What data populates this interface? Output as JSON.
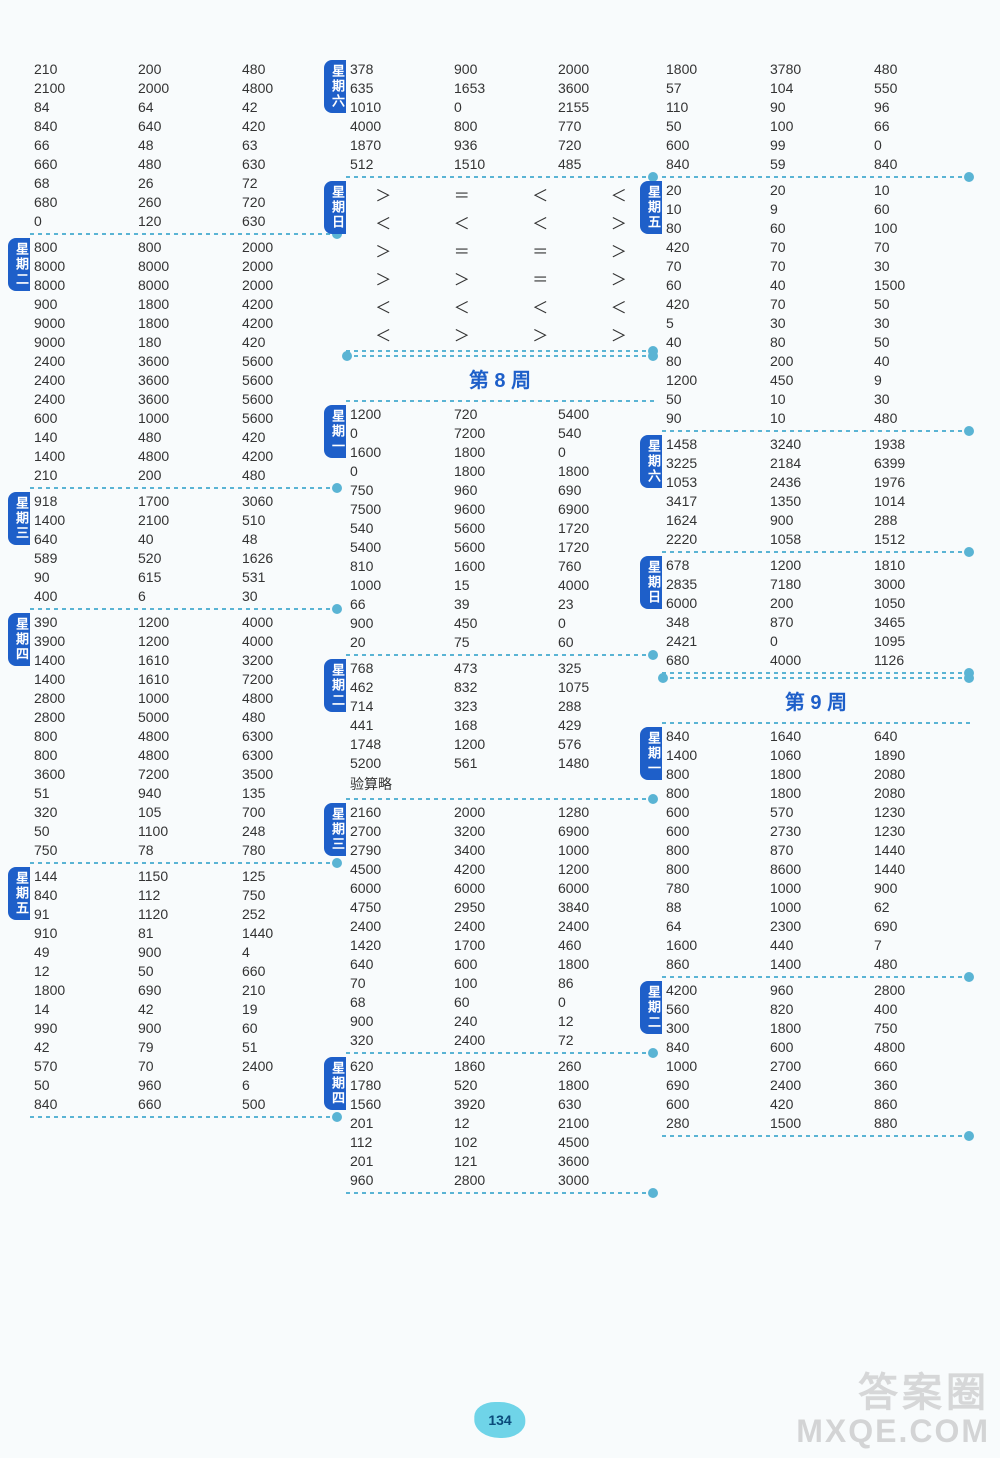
{
  "page_number": "134",
  "watermark_main": "答案圈",
  "watermark_sub": "MXQE.COM",
  "week8_title": "第 8 周",
  "week9_title": "第 9 周",
  "columns": [
    {
      "sections": [
        {
          "tab": null,
          "cells": [
            "210",
            "200",
            "480",
            "2100",
            "2000",
            "4800",
            "84",
            "64",
            "42",
            "840",
            "640",
            "420",
            "66",
            "48",
            "63",
            "660",
            "480",
            "630",
            "68",
            "26",
            "72",
            "680",
            "260",
            "720",
            "0",
            "120",
            "630"
          ]
        },
        {
          "tab": "星期二",
          "cells": [
            "800",
            "800",
            "2000",
            "8000",
            "8000",
            "2000",
            "8000",
            "8000",
            "2000",
            "900",
            "1800",
            "4200",
            "9000",
            "1800",
            "4200",
            "9000",
            "180",
            "420",
            "2400",
            "3600",
            "5600",
            "2400",
            "3600",
            "5600",
            "2400",
            "3600",
            "5600",
            "600",
            "1000",
            "5600",
            "140",
            "480",
            "420",
            "1400",
            "4800",
            "4200",
            "210",
            "200",
            "480"
          ]
        },
        {
          "tab": "星期三",
          "cells": [
            "918",
            "1700",
            "3060",
            "1400",
            "2100",
            "510",
            "640",
            "40",
            "48",
            "589",
            "520",
            "1626",
            "90",
            "615",
            "531",
            "400",
            "6",
            "30"
          ]
        },
        {
          "tab": "星期四",
          "cells": [
            "390",
            "1200",
            "4000",
            "3900",
            "1200",
            "4000",
            "1400",
            "1610",
            "3200",
            "1400",
            "1610",
            "7200",
            "2800",
            "1000",
            "4800",
            "2800",
            "5000",
            "480",
            "800",
            "4800",
            "6300",
            "800",
            "4800",
            "6300",
            "3600",
            "7200",
            "3500",
            "51",
            "940",
            "135",
            "320",
            "105",
            "700",
            "50",
            "1100",
            "248",
            "750",
            "78",
            "780"
          ]
        },
        {
          "tab": "星期五",
          "cells": [
            "144",
            "1150",
            "125",
            "840",
            "112",
            "750",
            "91",
            "1120",
            "252",
            "910",
            "81",
            "1440",
            "49",
            "900",
            "4",
            "12",
            "50",
            "660",
            "1800",
            "690",
            "210",
            "14",
            "42",
            "19",
            "990",
            "900",
            "60",
            "42",
            "79",
            "51",
            "570",
            "70",
            "2400",
            "50",
            "960",
            "6",
            "840",
            "660",
            "500"
          ]
        }
      ]
    },
    {
      "sections": [
        {
          "tab": "星期六",
          "cells": [
            "378",
            "900",
            "2000",
            "635",
            "1653",
            "3600",
            "1010",
            "0",
            "2155",
            "4000",
            "800",
            "770",
            "1870",
            "936",
            "720",
            "512",
            "1510",
            "485"
          ]
        },
        {
          "tab": "星期日",
          "type": "symbols",
          "cells": [
            "＞",
            "＝",
            "＜",
            "＜",
            "＜",
            "＜",
            "＜",
            "＞",
            "＞",
            "＝",
            "＝",
            "＞",
            "＞",
            "＞",
            "＝",
            "＞",
            "＜",
            "＜",
            "＜",
            "＜",
            "＜",
            "＞",
            "＞",
            "＞"
          ]
        },
        {
          "type": "week",
          "key": "week8_title"
        },
        {
          "tab": "星期一",
          "cells": [
            "1200",
            "720",
            "5400",
            "0",
            "7200",
            "540",
            "1600",
            "1800",
            "0",
            "0",
            "1800",
            "1800",
            "750",
            "960",
            "690",
            "7500",
            "9600",
            "6900",
            "540",
            "5600",
            "1720",
            "5400",
            "5600",
            "1720",
            "810",
            "1600",
            "760",
            "1000",
            "15",
            "4000",
            "66",
            "39",
            "23",
            "900",
            "450",
            "0",
            "20",
            "75",
            "60"
          ]
        },
        {
          "tab": "星期二",
          "cells": [
            "768",
            "473",
            "325",
            "462",
            "832",
            "1075",
            "714",
            "323",
            "288",
            "441",
            "168",
            "429",
            "1748",
            "1200",
            "576",
            "5200",
            "561",
            "1480"
          ],
          "verify": "验算略"
        },
        {
          "tab": "星期三",
          "cells": [
            "2160",
            "2000",
            "1280",
            "2700",
            "3200",
            "6900",
            "2790",
            "3400",
            "1000",
            "4500",
            "4200",
            "1200",
            "6000",
            "6000",
            "6000",
            "4750",
            "2950",
            "3840",
            "2400",
            "2400",
            "2400",
            "1420",
            "1700",
            "460",
            "640",
            "600",
            "1800",
            "70",
            "100",
            "86",
            "68",
            "60",
            "0",
            "900",
            "240",
            "12",
            "320",
            "2400",
            "72"
          ]
        },
        {
          "tab": "星期四",
          "cells": [
            "620",
            "1860",
            "260",
            "1780",
            "520",
            "1800",
            "1560",
            "3920",
            "630",
            "201",
            "12",
            "2100",
            "112",
            "102",
            "4500",
            "201",
            "121",
            "3600",
            "960",
            "2800",
            "3000"
          ]
        }
      ]
    },
    {
      "sections": [
        {
          "tab": null,
          "cells": [
            "1800",
            "3780",
            "480",
            "57",
            "104",
            "550",
            "110",
            "90",
            "96",
            "50",
            "100",
            "66",
            "600",
            "99",
            "0",
            "840",
            "59",
            "840"
          ]
        },
        {
          "tab": "星期五",
          "cells": [
            "20",
            "20",
            "10",
            "10",
            "9",
            "60",
            "80",
            "60",
            "100",
            "420",
            "70",
            "70",
            "70",
            "70",
            "30",
            "60",
            "40",
            "1500",
            "420",
            "70",
            "50",
            "5",
            "30",
            "30",
            "40",
            "80",
            "50",
            "80",
            "200",
            "40",
            "1200",
            "450",
            "9",
            "50",
            "10",
            "30",
            "90",
            "10",
            "480"
          ]
        },
        {
          "tab": "星期六",
          "cells": [
            "1458",
            "3240",
            "1938",
            "3225",
            "2184",
            "6399",
            "1053",
            "2436",
            "1976",
            "3417",
            "1350",
            "1014",
            "1624",
            "900",
            "288",
            "2220",
            "1058",
            "1512"
          ]
        },
        {
          "tab": "星期日",
          "cells": [
            "678",
            "1200",
            "1810",
            "2835",
            "7180",
            "3000",
            "6000",
            "200",
            "1050",
            "348",
            "870",
            "3465",
            "2421",
            "0",
            "1095",
            "680",
            "4000",
            "1126"
          ]
        },
        {
          "type": "week",
          "key": "week9_title"
        },
        {
          "tab": "星期一",
          "cells": [
            "840",
            "1640",
            "640",
            "1400",
            "1060",
            "1890",
            "800",
            "1800",
            "2080",
            "800",
            "1800",
            "2080",
            "600",
            "570",
            "1230",
            "600",
            "2730",
            "1230",
            "800",
            "870",
            "1440",
            "800",
            "8600",
            "1440",
            "780",
            "1000",
            "900",
            "88",
            "1000",
            "62",
            "64",
            "2300",
            "690",
            "1600",
            "440",
            "7",
            "860",
            "1400",
            "480"
          ]
        },
        {
          "tab": "星期二",
          "cells": [
            "4200",
            "960",
            "2800",
            "560",
            "820",
            "400",
            "300",
            "1800",
            "750",
            "840",
            "600",
            "4800",
            "1000",
            "2700",
            "660",
            "690",
            "2400",
            "360",
            "600",
            "420",
            "860",
            "280",
            "1500",
            "880"
          ]
        }
      ]
    }
  ]
}
